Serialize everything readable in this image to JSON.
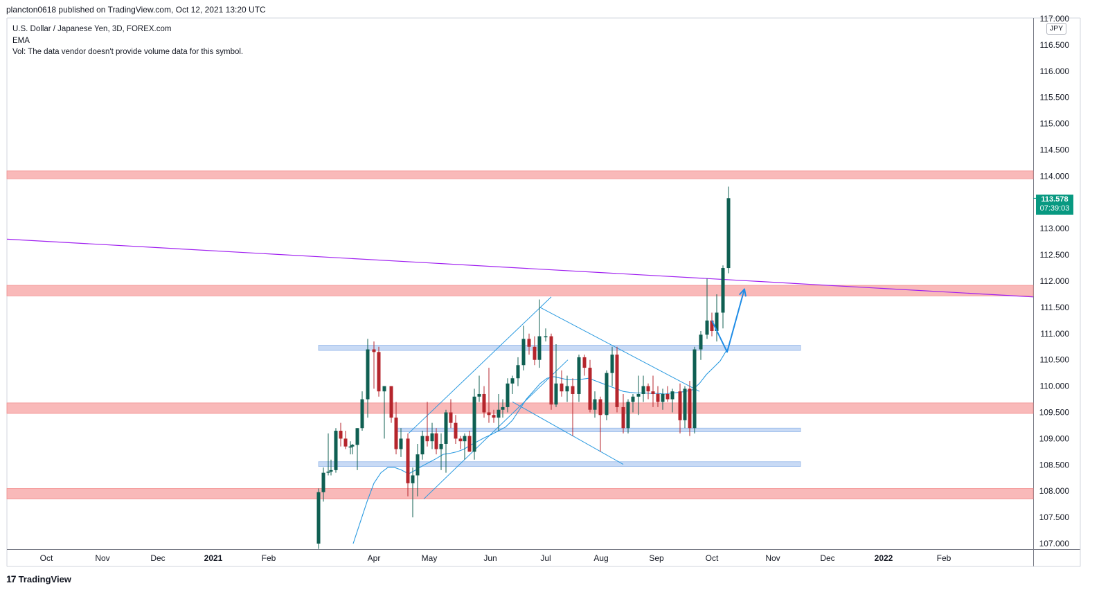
{
  "header": {
    "published": "plancton0618 published on TradingView.com, Oct 12, 2021 13:20 UTC"
  },
  "legend": {
    "symbol": "U.S. Dollar / Japanese Yen, 3D, FOREX.com",
    "indicator": "EMA",
    "volume": "Vol: The data vendor doesn't provide volume data for this symbol."
  },
  "price_axis": {
    "currency": "JPY",
    "current_price": "113.578",
    "countdown": "07:39:03"
  },
  "footer": {
    "brand": "TradingView",
    "logo": "17"
  },
  "colors": {
    "bull": "#0f5f52",
    "bear": "#b5252c",
    "ema": "#2a9ae0",
    "trend": "#a020f0",
    "resistance_zone": "#f9b6b6",
    "support_zone": "#c6d9f5",
    "badge": "#089981"
  },
  "chart_data": {
    "type": "candlestick",
    "title": "U.S. Dollar / Japanese Yen, 3D, FOREX.com",
    "ylim": [
      107.0,
      117.0
    ],
    "y_ticks": [
      "107.000",
      "107.500",
      "108.000",
      "108.500",
      "109.000",
      "109.500",
      "110.000",
      "110.500",
      "111.000",
      "111.500",
      "112.000",
      "112.500",
      "113.000",
      "113.500",
      "114.000",
      "114.500",
      "115.000",
      "115.500",
      "116.000",
      "116.500",
      "117.000"
    ],
    "x_ticks": [
      {
        "label": "Oct",
        "x": 67
      },
      {
        "label": "Nov",
        "x": 148
      },
      {
        "label": "Dec",
        "x": 228
      },
      {
        "label": "2021",
        "x": 308,
        "bold": true
      },
      {
        "label": "Feb",
        "x": 388
      },
      {
        "label": "Apr",
        "x": 540
      },
      {
        "label": "May",
        "x": 620
      },
      {
        "label": "Jun",
        "x": 708
      },
      {
        "label": "Jul",
        "x": 788
      },
      {
        "label": "Aug",
        "x": 868
      },
      {
        "label": "Sep",
        "x": 948
      },
      {
        "label": "Oct",
        "x": 1028
      },
      {
        "label": "Nov",
        "x": 1116
      },
      {
        "label": "Dec",
        "x": 1195
      },
      {
        "label": "2022",
        "x": 1276,
        "bold": true
      },
      {
        "label": "Feb",
        "x": 1363
      }
    ],
    "candles": [
      {
        "x": 460,
        "o": 107.0,
        "h": 108.05,
        "l": 106.9,
        "c": 107.98
      },
      {
        "x": 467,
        "o": 107.98,
        "h": 108.45,
        "l": 107.8,
        "c": 108.35
      },
      {
        "x": 474,
        "o": 108.35,
        "h": 109.1,
        "l": 108.3,
        "c": 108.37
      },
      {
        "x": 478,
        "o": 108.37,
        "h": 108.6,
        "l": 108.3,
        "c": 108.4
      },
      {
        "x": 485,
        "o": 108.4,
        "h": 109.2,
        "l": 108.35,
        "c": 109.15
      },
      {
        "x": 492,
        "o": 109.15,
        "h": 109.3,
        "l": 108.85,
        "c": 109.0
      },
      {
        "x": 499,
        "o": 109.0,
        "h": 109.15,
        "l": 108.8,
        "c": 108.85
      },
      {
        "x": 506,
        "o": 108.85,
        "h": 108.95,
        "l": 108.7,
        "c": 108.85
      },
      {
        "x": 509,
        "o": 108.85,
        "h": 108.9,
        "l": 108.7,
        "c": 108.88
      },
      {
        "x": 516,
        "o": 108.88,
        "h": 109.2,
        "l": 108.4,
        "c": 109.2
      },
      {
        "x": 523,
        "o": 109.2,
        "h": 109.9,
        "l": 109.15,
        "c": 109.75
      },
      {
        "x": 531,
        "o": 109.75,
        "h": 110.9,
        "l": 109.4,
        "c": 110.7
      },
      {
        "x": 540,
        "o": 110.7,
        "h": 110.85,
        "l": 109.95,
        "c": 110.65
      },
      {
        "x": 547,
        "o": 110.65,
        "h": 110.75,
        "l": 109.8,
        "c": 109.9
      },
      {
        "x": 555,
        "o": 109.9,
        "h": 110.0,
        "l": 109.0,
        "c": 110.0
      },
      {
        "x": 565,
        "o": 110.0,
        "h": 110.0,
        "l": 109.3,
        "c": 109.4
      },
      {
        "x": 572,
        "o": 109.4,
        "h": 109.7,
        "l": 108.7,
        "c": 108.8
      },
      {
        "x": 579,
        "o": 108.8,
        "h": 109.2,
        "l": 108.65,
        "c": 109.0
      },
      {
        "x": 589,
        "o": 109.0,
        "h": 109.1,
        "l": 107.9,
        "c": 108.15
      },
      {
        "x": 596,
        "o": 108.15,
        "h": 108.45,
        "l": 107.5,
        "c": 108.3
      },
      {
        "x": 603,
        "o": 108.3,
        "h": 108.9,
        "l": 107.9,
        "c": 108.7
      },
      {
        "x": 610,
        "o": 108.7,
        "h": 109.15,
        "l": 108.6,
        "c": 109.05
      },
      {
        "x": 617,
        "o": 109.05,
        "h": 109.7,
        "l": 108.85,
        "c": 108.95
      },
      {
        "x": 624,
        "o": 108.95,
        "h": 109.3,
        "l": 108.8,
        "c": 109.1
      },
      {
        "x": 630,
        "o": 109.1,
        "h": 109.2,
        "l": 108.7,
        "c": 108.8
      },
      {
        "x": 637,
        "o": 108.8,
        "h": 109.1,
        "l": 108.4,
        "c": 108.9
      },
      {
        "x": 644,
        "o": 108.9,
        "h": 109.55,
        "l": 108.35,
        "c": 109.5
      },
      {
        "x": 651,
        "o": 109.5,
        "h": 109.75,
        "l": 109.2,
        "c": 109.3
      },
      {
        "x": 658,
        "o": 109.3,
        "h": 109.45,
        "l": 108.9,
        "c": 109.0
      },
      {
        "x": 665,
        "o": 109.0,
        "h": 109.05,
        "l": 108.8,
        "c": 108.95
      },
      {
        "x": 671,
        "o": 108.95,
        "h": 109.1,
        "l": 108.6,
        "c": 109.05
      },
      {
        "x": 678,
        "o": 109.05,
        "h": 109.15,
        "l": 108.75,
        "c": 108.75
      },
      {
        "x": 685,
        "o": 108.75,
        "h": 109.95,
        "l": 108.6,
        "c": 109.8
      },
      {
        "x": 692,
        "o": 109.8,
        "h": 110.2,
        "l": 109.7,
        "c": 109.85
      },
      {
        "x": 699,
        "o": 109.85,
        "h": 110.0,
        "l": 109.4,
        "c": 109.5
      },
      {
        "x": 706,
        "o": 109.5,
        "h": 110.35,
        "l": 109.3,
        "c": 109.45
      },
      {
        "x": 713,
        "o": 109.45,
        "h": 109.55,
        "l": 109.3,
        "c": 109.4
      },
      {
        "x": 720,
        "o": 109.4,
        "h": 109.85,
        "l": 109.15,
        "c": 109.55
      },
      {
        "x": 726,
        "o": 109.55,
        "h": 109.75,
        "l": 109.4,
        "c": 109.6
      },
      {
        "x": 733,
        "o": 109.6,
        "h": 110.15,
        "l": 109.5,
        "c": 110.05
      },
      {
        "x": 740,
        "o": 110.05,
        "h": 110.2,
        "l": 109.85,
        "c": 110.15
      },
      {
        "x": 748,
        "o": 110.15,
        "h": 110.55,
        "l": 110.0,
        "c": 110.4
      },
      {
        "x": 756,
        "o": 110.4,
        "h": 111.15,
        "l": 110.3,
        "c": 110.9
      },
      {
        "x": 764,
        "o": 110.9,
        "h": 111.0,
        "l": 110.6,
        "c": 110.75
      },
      {
        "x": 772,
        "o": 110.75,
        "h": 110.95,
        "l": 110.4,
        "c": 110.5
      },
      {
        "x": 779,
        "o": 110.5,
        "h": 111.65,
        "l": 110.35,
        "c": 110.95
      },
      {
        "x": 788,
        "o": 110.95,
        "h": 111.1,
        "l": 110.85,
        "c": 110.95
      },
      {
        "x": 796,
        "o": 110.95,
        "h": 111.0,
        "l": 109.55,
        "c": 109.65
      },
      {
        "x": 803,
        "o": 109.65,
        "h": 110.8,
        "l": 109.6,
        "c": 110.05
      },
      {
        "x": 811,
        "o": 110.05,
        "h": 110.3,
        "l": 109.8,
        "c": 109.9
      },
      {
        "x": 819,
        "o": 109.9,
        "h": 110.2,
        "l": 109.7,
        "c": 110.0
      },
      {
        "x": 827,
        "o": 110.0,
        "h": 110.15,
        "l": 109.05,
        "c": 109.85
      },
      {
        "x": 836,
        "o": 109.85,
        "h": 110.6,
        "l": 109.7,
        "c": 110.55
      },
      {
        "x": 844,
        "o": 110.55,
        "h": 110.6,
        "l": 110.2,
        "c": 110.35
      },
      {
        "x": 852,
        "o": 110.35,
        "h": 110.5,
        "l": 109.5,
        "c": 109.55
      },
      {
        "x": 859,
        "o": 109.55,
        "h": 109.9,
        "l": 109.4,
        "c": 109.75
      },
      {
        "x": 867,
        "o": 109.75,
        "h": 109.8,
        "l": 108.75,
        "c": 109.45
      },
      {
        "x": 876,
        "o": 109.45,
        "h": 110.3,
        "l": 109.35,
        "c": 110.25
      },
      {
        "x": 884,
        "o": 110.25,
        "h": 110.75,
        "l": 110.0,
        "c": 110.6
      },
      {
        "x": 891,
        "o": 110.6,
        "h": 110.75,
        "l": 109.5,
        "c": 109.6
      },
      {
        "x": 900,
        "o": 109.6,
        "h": 109.85,
        "l": 109.1,
        "c": 109.2
      },
      {
        "x": 907,
        "o": 109.2,
        "h": 109.75,
        "l": 109.1,
        "c": 109.7
      },
      {
        "x": 914,
        "o": 109.7,
        "h": 109.85,
        "l": 109.5,
        "c": 109.8
      },
      {
        "x": 922,
        "o": 109.8,
        "h": 110.2,
        "l": 109.45,
        "c": 109.85
      },
      {
        "x": 929,
        "o": 109.85,
        "h": 110.2,
        "l": 109.7,
        "c": 110.0
      },
      {
        "x": 936,
        "o": 110.0,
        "h": 110.05,
        "l": 109.75,
        "c": 109.9
      },
      {
        "x": 943,
        "o": 109.9,
        "h": 110.2,
        "l": 109.6,
        "c": 109.85
      },
      {
        "x": 950,
        "o": 109.85,
        "h": 110.0,
        "l": 109.6,
        "c": 109.7
      },
      {
        "x": 957,
        "o": 109.7,
        "h": 109.95,
        "l": 109.55,
        "c": 109.85
      },
      {
        "x": 964,
        "o": 109.85,
        "h": 110.0,
        "l": 109.7,
        "c": 109.75
      },
      {
        "x": 971,
        "o": 109.75,
        "h": 109.95,
        "l": 109.5,
        "c": 109.9
      },
      {
        "x": 982,
        "o": 109.9,
        "h": 110.05,
        "l": 109.1,
        "c": 109.35
      },
      {
        "x": 989,
        "o": 109.35,
        "h": 110.0,
        "l": 109.2,
        "c": 109.95
      },
      {
        "x": 996,
        "o": 109.95,
        "h": 110.1,
        "l": 109.05,
        "c": 109.2
      },
      {
        "x": 1003,
        "o": 109.2,
        "h": 110.75,
        "l": 109.1,
        "c": 110.7
      },
      {
        "x": 1012,
        "o": 110.7,
        "h": 111.05,
        "l": 110.5,
        "c": 110.98
      },
      {
        "x": 1021,
        "o": 110.98,
        "h": 112.05,
        "l": 110.9,
        "c": 111.25
      },
      {
        "x": 1028,
        "o": 111.25,
        "h": 111.4,
        "l": 110.95,
        "c": 111.05
      },
      {
        "x": 1035,
        "o": 111.05,
        "h": 111.75,
        "l": 110.85,
        "c": 111.4
      },
      {
        "x": 1044,
        "o": 111.4,
        "h": 112.3,
        "l": 111.1,
        "c": 112.25
      },
      {
        "x": 1052,
        "o": 112.25,
        "h": 113.8,
        "l": 112.15,
        "c": 113.58
      }
    ],
    "ema": [
      [
        510,
        107.0
      ],
      [
        520,
        107.4
      ],
      [
        530,
        107.8
      ],
      [
        540,
        108.15
      ],
      [
        550,
        108.35
      ],
      [
        560,
        108.45
      ],
      [
        570,
        108.45
      ],
      [
        580,
        108.4
      ],
      [
        590,
        108.33
      ],
      [
        600,
        108.4
      ],
      [
        610,
        108.48
      ],
      [
        620,
        108.55
      ],
      [
        630,
        108.62
      ],
      [
        640,
        108.7
      ],
      [
        650,
        108.72
      ],
      [
        660,
        108.75
      ],
      [
        670,
        108.8
      ],
      [
        680,
        108.88
      ],
      [
        690,
        108.95
      ],
      [
        700,
        109.02
      ],
      [
        710,
        109.08
      ],
      [
        720,
        109.15
      ],
      [
        730,
        109.22
      ],
      [
        740,
        109.35
      ],
      [
        750,
        109.55
      ],
      [
        760,
        109.75
      ],
      [
        770,
        109.9
      ],
      [
        780,
        110.05
      ],
      [
        790,
        110.15
      ],
      [
        800,
        110.18
      ],
      [
        810,
        110.15
      ],
      [
        820,
        110.12
      ],
      [
        830,
        110.12
      ],
      [
        840,
        110.13
      ],
      [
        850,
        110.15
      ],
      [
        860,
        110.1
      ],
      [
        870,
        110.05
      ],
      [
        880,
        110.0
      ],
      [
        890,
        109.95
      ],
      [
        900,
        109.9
      ],
      [
        910,
        109.88
      ],
      [
        920,
        109.87
      ],
      [
        930,
        109.87
      ],
      [
        940,
        109.86
      ],
      [
        950,
        109.86
      ],
      [
        960,
        109.85
      ],
      [
        970,
        109.87
      ],
      [
        980,
        109.88
      ],
      [
        990,
        109.9
      ],
      [
        1000,
        109.93
      ],
      [
        1010,
        110.05
      ],
      [
        1020,
        110.22
      ],
      [
        1030,
        110.35
      ],
      [
        1040,
        110.48
      ],
      [
        1050,
        110.7
      ]
    ],
    "zones": [
      {
        "kind": "resistance",
        "y1": 113.95,
        "y2": 114.1,
        "x1": 10,
        "x2": 1492
      },
      {
        "kind": "resistance",
        "y1": 111.72,
        "y2": 111.92,
        "x1": 10,
        "x2": 1492
      },
      {
        "kind": "support",
        "y1": 110.68,
        "y2": 110.78,
        "x1": 460,
        "x2": 1156
      },
      {
        "kind": "resistance",
        "y1": 109.48,
        "y2": 109.68,
        "x1": 10,
        "x2": 1492
      },
      {
        "kind": "support",
        "y1": 109.13,
        "y2": 109.2,
        "x1": 574,
        "x2": 1156
      },
      {
        "kind": "support",
        "y1": 108.47,
        "y2": 108.56,
        "x1": 460,
        "x2": 1156
      },
      {
        "kind": "resistance",
        "y1": 107.85,
        "y2": 108.05,
        "x1": 10,
        "x2": 1492
      }
    ],
    "trendline": {
      "from": [
        10,
        112.8
      ],
      "to": [
        1492,
        111.7
      ]
    },
    "channel_lines": [
      {
        "from": [
          590,
          109.1
        ],
        "to": [
          796,
          111.7
        ]
      },
      {
        "from": [
          612,
          107.85
        ],
        "to": [
          820,
          110.5
        ]
      },
      {
        "from": [
          780,
          111.5
        ],
        "to": [
          1010,
          109.9
        ]
      },
      {
        "from": [
          740,
          109.7
        ],
        "to": [
          900,
          108.51
        ]
      }
    ],
    "projection_arrow": {
      "points": [
        [
          1028,
          111.25
        ],
        [
          1050,
          110.65
        ],
        [
          1075,
          111.85
        ]
      ]
    }
  }
}
